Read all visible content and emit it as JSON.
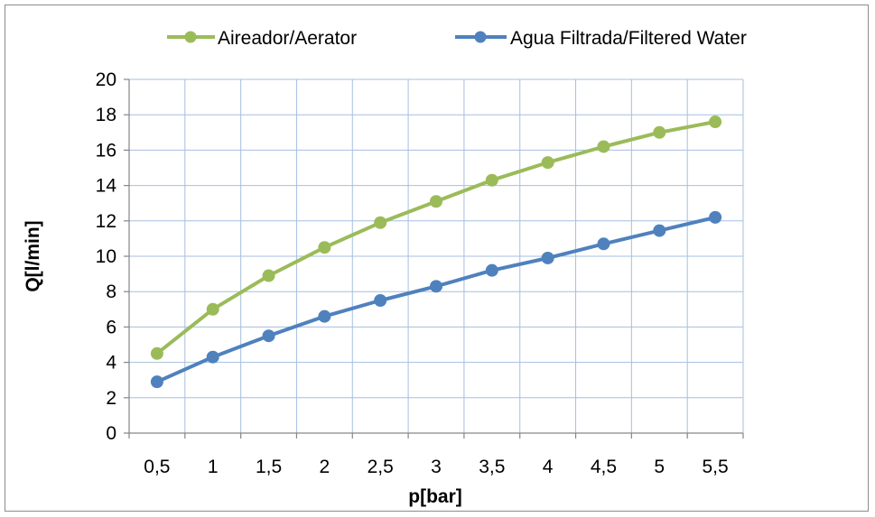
{
  "chart_data": {
    "type": "line",
    "title": "",
    "xlabel": "p[bar]",
    "ylabel": "Q[l/min]",
    "x": [
      "0,5",
      "1",
      "1,5",
      "2",
      "2,5",
      "3",
      "3,5",
      "4",
      "4,5",
      "5",
      "5,5"
    ],
    "x_values": [
      0.5,
      1,
      1.5,
      2,
      2.5,
      3,
      3.5,
      4,
      4.5,
      5,
      5.5
    ],
    "xlim": [
      0.25,
      5.75
    ],
    "ylim": [
      0,
      20
    ],
    "y_ticks": [
      0,
      2,
      4,
      6,
      8,
      10,
      12,
      14,
      16,
      18,
      20
    ],
    "y_tick_labels": [
      "0",
      "2",
      "4",
      "6",
      "8",
      "10",
      "12",
      "14",
      "16",
      "18",
      "20"
    ],
    "grid": true,
    "legend_position": "top",
    "series": [
      {
        "name": "Aireador/Aerator",
        "color": "#9bbb59",
        "values": [
          4.5,
          7.0,
          8.9,
          10.5,
          11.9,
          13.1,
          14.3,
          15.3,
          16.2,
          17.0,
          17.6
        ]
      },
      {
        "name": "Agua Filtrada/Filtered Water",
        "color": "#4f81bd",
        "values": [
          2.9,
          4.3,
          5.5,
          6.6,
          7.5,
          8.3,
          9.2,
          9.9,
          10.7,
          11.45,
          12.2
        ]
      }
    ]
  },
  "colors": {
    "grid": "#a6bfe0",
    "axis": "#868686",
    "frame": "#8c8c8c"
  }
}
